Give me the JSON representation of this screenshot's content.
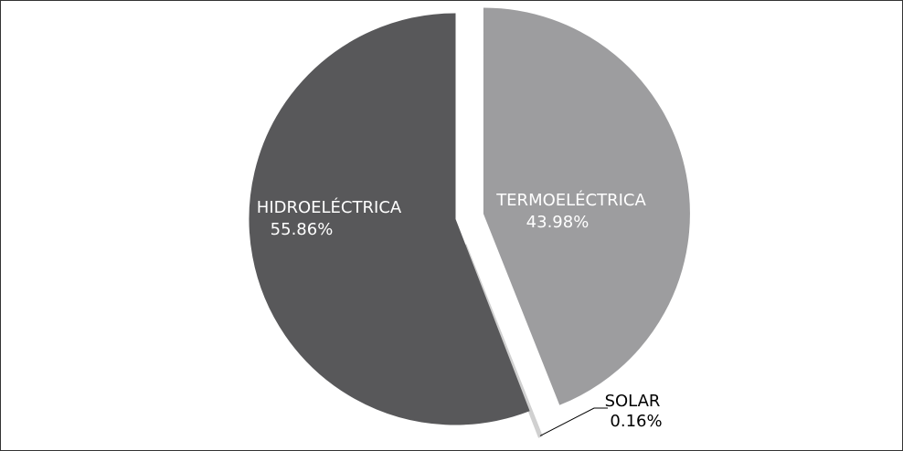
{
  "chart_data": {
    "type": "pie",
    "categories": [
      "TERMOELÉCTRICA",
      "SOLAR",
      "HIDROELÉCTRICA"
    ],
    "values": [
      43.98,
      0.16,
      55.86
    ],
    "value_labels": [
      "43.98%",
      "0.16%",
      "55.86%"
    ],
    "colors": [
      "#9d9d9f",
      "#d0d0d0",
      "#58585a"
    ]
  }
}
